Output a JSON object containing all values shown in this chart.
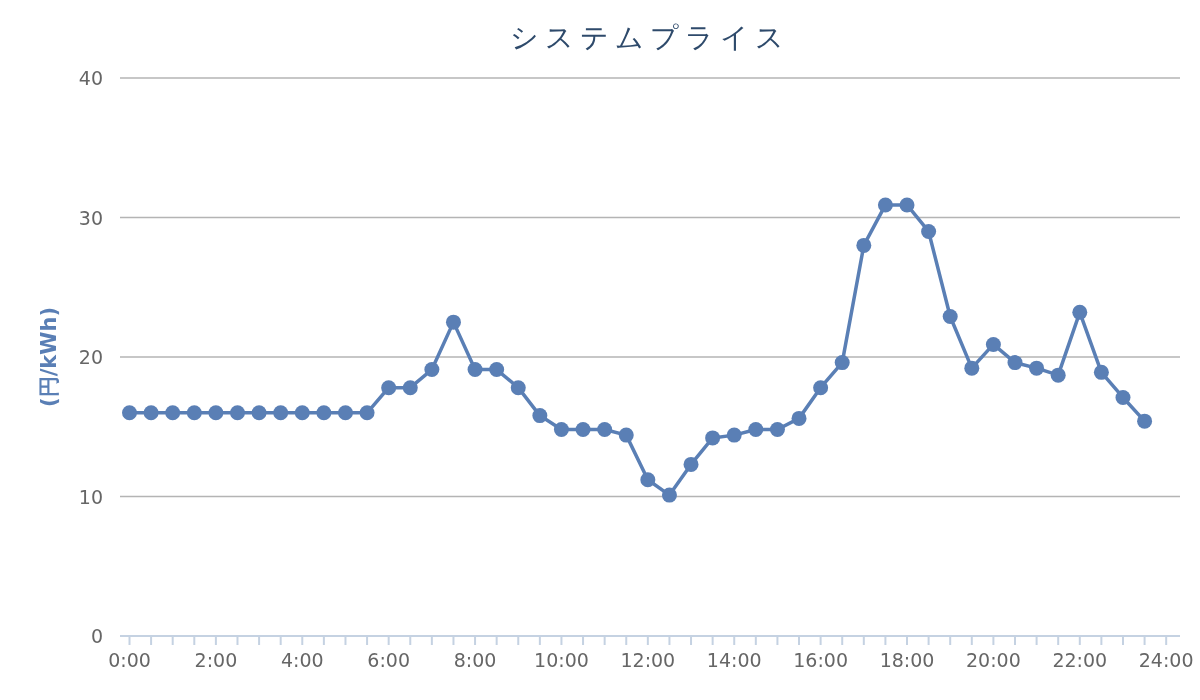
{
  "chart_data": {
    "type": "line",
    "title": "システムプライス",
    "ylabel": "(円/kWh)",
    "x": [
      0,
      0.5,
      1,
      1.5,
      2,
      2.5,
      3,
      3.5,
      4,
      4.5,
      5,
      5.5,
      6,
      6.5,
      7,
      7.5,
      8,
      8.5,
      9,
      9.5,
      10,
      10.5,
      11,
      11.5,
      12,
      12.5,
      13,
      13.5,
      14,
      14.5,
      15,
      15.5,
      16,
      16.5,
      17,
      17.5,
      18,
      18.5,
      19,
      19.5,
      20,
      20.5,
      21,
      21.5,
      22,
      22.5,
      23,
      23.5
    ],
    "series": [
      {
        "color": "#5a7fb5",
        "values": [
          16.0,
          16.0,
          16.0,
          16.0,
          16.0,
          16.0,
          16.0,
          16.0,
          16.0,
          16.0,
          16.0,
          16.0,
          17.8,
          17.8,
          19.1,
          22.5,
          19.1,
          19.1,
          17.8,
          15.8,
          14.8,
          14.8,
          14.8,
          14.4,
          11.2,
          10.1,
          12.3,
          14.2,
          14.4,
          14.8,
          14.8,
          15.6,
          17.8,
          19.6,
          28.0,
          30.9,
          30.9,
          29.0,
          22.9,
          19.2,
          20.9,
          19.6,
          19.2,
          18.7,
          23.2,
          18.9,
          17.1,
          15.4
        ]
      }
    ],
    "xlim": [
      -0.22,
      24.32
    ],
    "xticks": [
      {
        "value": 0,
        "label": "0:00"
      },
      {
        "value": 0.5,
        "label": null
      },
      {
        "value": 1,
        "label": null
      },
      {
        "value": 1.5,
        "label": null
      },
      {
        "value": 2,
        "label": "2:00"
      },
      {
        "value": 2.5,
        "label": null
      },
      {
        "value": 3,
        "label": null
      },
      {
        "value": 3.5,
        "label": null
      },
      {
        "value": 4,
        "label": "4:00"
      },
      {
        "value": 4.5,
        "label": null
      },
      {
        "value": 5,
        "label": null
      },
      {
        "value": 5.5,
        "label": null
      },
      {
        "value": 6,
        "label": "6:00"
      },
      {
        "value": 6.5,
        "label": null
      },
      {
        "value": 7,
        "label": null
      },
      {
        "value": 7.5,
        "label": null
      },
      {
        "value": 8,
        "label": "8:00"
      },
      {
        "value": 8.5,
        "label": null
      },
      {
        "value": 9,
        "label": null
      },
      {
        "value": 9.5,
        "label": null
      },
      {
        "value": 10,
        "label": "10:00"
      },
      {
        "value": 10.5,
        "label": null
      },
      {
        "value": 11,
        "label": null
      },
      {
        "value": 11.5,
        "label": null
      },
      {
        "value": 12,
        "label": "12:00"
      },
      {
        "value": 12.5,
        "label": null
      },
      {
        "value": 13,
        "label": null
      },
      {
        "value": 13.5,
        "label": null
      },
      {
        "value": 14,
        "label": "14:00"
      },
      {
        "value": 14.5,
        "label": null
      },
      {
        "value": 15,
        "label": null
      },
      {
        "value": 15.5,
        "label": null
      },
      {
        "value": 16,
        "label": "16:00"
      },
      {
        "value": 16.5,
        "label": null
      },
      {
        "value": 17,
        "label": null
      },
      {
        "value": 17.5,
        "label": null
      },
      {
        "value": 18,
        "label": "18:00"
      },
      {
        "value": 18.5,
        "label": null
      },
      {
        "value": 19,
        "label": null
      },
      {
        "value": 19.5,
        "label": null
      },
      {
        "value": 20,
        "label": "20:00"
      },
      {
        "value": 20.5,
        "label": null
      },
      {
        "value": 21,
        "label": null
      },
      {
        "value": 21.5,
        "label": null
      },
      {
        "value": 22,
        "label": "22:00"
      },
      {
        "value": 22.5,
        "label": null
      },
      {
        "value": 23,
        "label": null
      },
      {
        "value": 23.5,
        "label": null
      },
      {
        "value": 24,
        "label": "24:00"
      }
    ],
    "ylim": [
      0,
      40
    ],
    "yticks": [
      0,
      10,
      20,
      30,
      40
    ],
    "grid": "y",
    "marker": "circle",
    "line_style": "solid"
  }
}
